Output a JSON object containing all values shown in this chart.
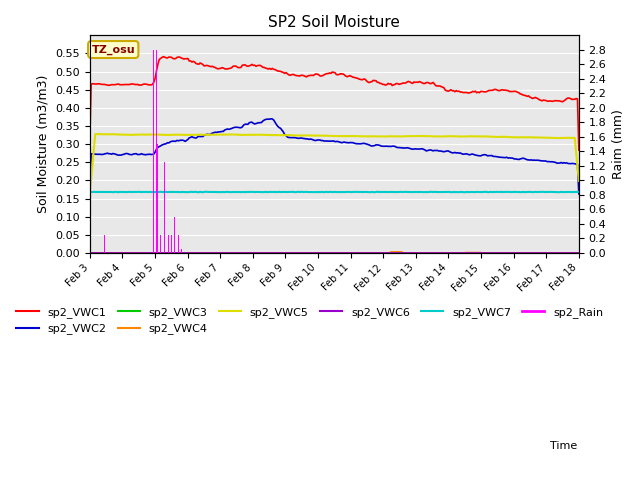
{
  "title": "SP2 Soil Moisture",
  "xlabel": "Time",
  "ylabel_left": "Soil Moisture (m3/m3)",
  "ylabel_right": "Raim (mm)",
  "annotation_text": "TZ_osu",
  "bg_color": "#e8e8e8",
  "fig_bg_color": "#ffffff",
  "ylim_left": [
    0.0,
    0.6
  ],
  "ylim_right": [
    0.0,
    3.0
  ],
  "series": {
    "sp2_VWC1": {
      "color": "#ff0000",
      "lw": 1.2
    },
    "sp2_VWC2": {
      "color": "#0000cc",
      "lw": 1.2
    },
    "sp2_VWC3": {
      "color": "#00cc00",
      "lw": 1.2
    },
    "sp2_VWC4": {
      "color": "#ff8800",
      "lw": 1.2
    },
    "sp2_VWC5": {
      "color": "#dddd00",
      "lw": 1.5
    },
    "sp2_VWC6": {
      "color": "#9900cc",
      "lw": 1.2
    },
    "sp2_VWC7": {
      "color": "#00cccc",
      "lw": 1.5
    },
    "sp2_Rain": {
      "color": "#ff00ff",
      "lw": 1.0
    }
  },
  "xmin_day": 3,
  "xmax_day": 18,
  "xtick_days": [
    3,
    4,
    5,
    6,
    7,
    8,
    9,
    10,
    11,
    12,
    13,
    14,
    15,
    16,
    17,
    18
  ],
  "xtick_labels": [
    "Feb 3",
    "Feb 4",
    "Feb 5",
    "Feb 6",
    "Feb 7",
    "Feb 8",
    "Feb 9",
    "Feb 10",
    "Feb 11",
    "Feb 12",
    "Feb 13",
    "Feb 14",
    "Feb 15",
    "Feb 16",
    "Feb 17",
    "Feb 18"
  ],
  "yticks_left": [
    0.0,
    0.05,
    0.1,
    0.15,
    0.2,
    0.25,
    0.3,
    0.35,
    0.4,
    0.45,
    0.5,
    0.55
  ],
  "yticks_right": [
    0.0,
    0.2,
    0.4,
    0.6,
    0.8,
    1.0,
    1.2,
    1.4,
    1.6,
    1.8,
    2.0,
    2.2,
    2.4,
    2.6,
    2.8
  ],
  "legend_order": [
    "sp2_VWC1",
    "sp2_VWC2",
    "sp2_VWC3",
    "sp2_VWC4",
    "sp2_VWC5",
    "sp2_VWC6",
    "sp2_VWC7",
    "sp2_Rain"
  ]
}
